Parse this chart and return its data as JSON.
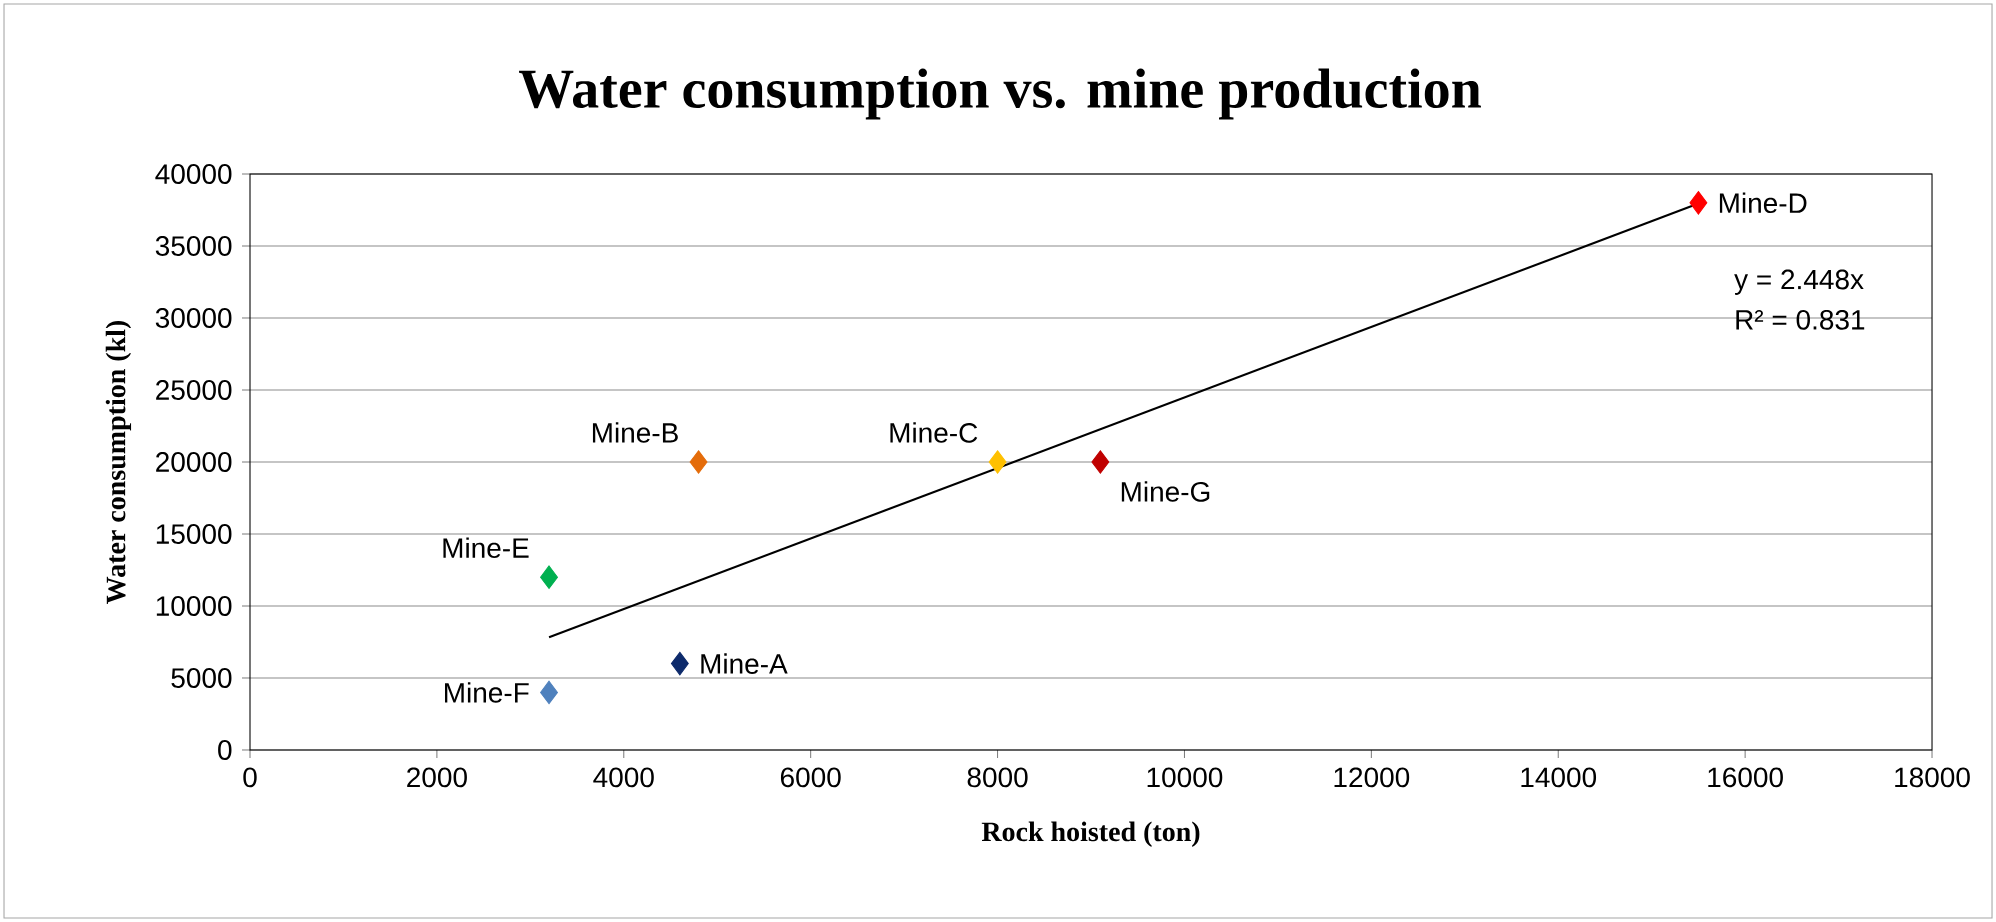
{
  "chart_data": {
    "type": "scatter",
    "title": "Water consumption vs. mine production",
    "xlabel": "Rock hoisted (ton)",
    "ylabel": "Water consumption (kl)",
    "xlim": [
      0,
      18000
    ],
    "ylim": [
      0,
      40000
    ],
    "xticks": [
      0,
      2000,
      4000,
      6000,
      8000,
      10000,
      12000,
      14000,
      16000,
      18000
    ],
    "yticks": [
      0,
      5000,
      10000,
      15000,
      20000,
      25000,
      30000,
      35000,
      40000
    ],
    "grid": "y",
    "marker": "diamond",
    "annotations": [
      "y = 2.448x",
      "R² = 0.831"
    ],
    "series": [
      {
        "name": "Mine-A",
        "color": "#0d2a6b",
        "x": [
          4600
        ],
        "values": [
          6000
        ]
      },
      {
        "name": "Mine-B",
        "color": "#e46c0a",
        "x": [
          4800
        ],
        "values": [
          20000
        ]
      },
      {
        "name": "Mine-C",
        "color": "#ffc000",
        "x": [
          8000
        ],
        "values": [
          20000
        ]
      },
      {
        "name": "Mine-D",
        "color": "#ff0000",
        "x": [
          15500
        ],
        "values": [
          38000
        ]
      },
      {
        "name": "Mine-E",
        "color": "#00b050",
        "x": [
          3200
        ],
        "values": [
          12000
        ]
      },
      {
        "name": "Mine-F",
        "color": "#4f81bd",
        "x": [
          3200
        ],
        "values": [
          4000
        ]
      },
      {
        "name": "Mine-G",
        "color": "#c00000",
        "x": [
          9100
        ],
        "values": [
          20000
        ]
      },
      {
        "type": "line",
        "color": "#000000",
        "marker": "none",
        "x": [
          3200,
          15500
        ],
        "values": [
          7834,
          37944
        ]
      }
    ]
  }
}
